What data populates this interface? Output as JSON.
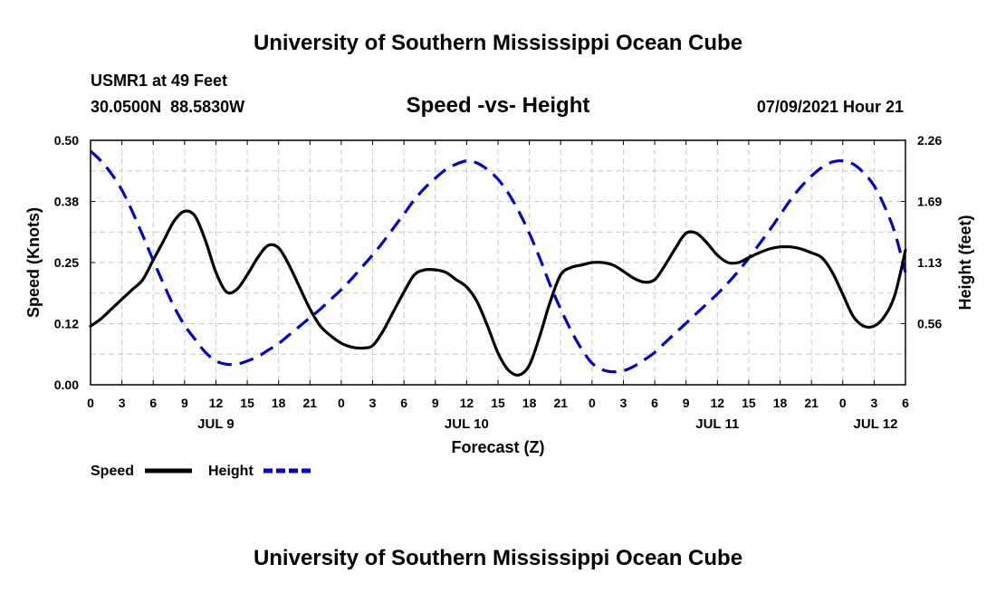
{
  "header": {
    "title_top": "University of Southern Mississippi Ocean Cube",
    "station": "USMR1 at 49 Feet",
    "coords": "30.0500N  88.5830W",
    "datetime": "07/09/2021 Hour 21",
    "title_bottom": "University of Southern Mississippi Ocean Cube"
  },
  "chart_data": {
    "type": "line",
    "title": "Speed -vs- Height",
    "xlabel": "Forecast (Z)",
    "ylabel_left": "Speed (Knots)",
    "ylabel_right": "Height (feet)",
    "x_range_hours": [
      0,
      78
    ],
    "ylim_left": [
      0,
      0.5
    ],
    "ylim_right": [
      0,
      2.26
    ],
    "left_ticks": [
      {
        "value": 0.0,
        "label": "0.00"
      },
      {
        "value": 0.125,
        "label": "0.12"
      },
      {
        "value": 0.25,
        "label": "0.25"
      },
      {
        "value": 0.375,
        "label": "0.38"
      },
      {
        "value": 0.5,
        "label": "0.50"
      }
    ],
    "right_ticks": [
      {
        "value": 0.565,
        "label": "0.56"
      },
      {
        "value": 1.13,
        "label": "1.13"
      },
      {
        "value": 1.695,
        "label": "1.69"
      },
      {
        "value": 2.26,
        "label": "2.26"
      }
    ],
    "x_tick_labels": [
      "0",
      "3",
      "6",
      "9",
      "12",
      "15",
      "18",
      "21",
      "0",
      "3",
      "6",
      "9",
      "12",
      "15",
      "18",
      "21",
      "0",
      "3",
      "6",
      "9",
      "12",
      "15",
      "18",
      "21",
      "0",
      "3",
      "6"
    ],
    "day_labels": [
      {
        "hour": 12,
        "label": "JUL 9"
      },
      {
        "hour": 36,
        "label": "JUL 10"
      },
      {
        "hour": 60,
        "label": "JUL 11"
      },
      {
        "hour": 78,
        "label": "JUL 12"
      }
    ],
    "grid": true,
    "legend": [
      "Speed",
      "Height"
    ],
    "series": [
      {
        "name": "Speed",
        "axis": "left",
        "color": "#000000",
        "dash": "solid",
        "points": [
          [
            0,
            0.12
          ],
          [
            1,
            0.135
          ],
          [
            2,
            0.155
          ],
          [
            3,
            0.175
          ],
          [
            4,
            0.195
          ],
          [
            5,
            0.215
          ],
          [
            6,
            0.255
          ],
          [
            7,
            0.295
          ],
          [
            8,
            0.335
          ],
          [
            9,
            0.355
          ],
          [
            10,
            0.345
          ],
          [
            11,
            0.295
          ],
          [
            12,
            0.23
          ],
          [
            13,
            0.19
          ],
          [
            14,
            0.195
          ],
          [
            15,
            0.225
          ],
          [
            16,
            0.26
          ],
          [
            17,
            0.285
          ],
          [
            18,
            0.28
          ],
          [
            19,
            0.245
          ],
          [
            20,
            0.2
          ],
          [
            21,
            0.155
          ],
          [
            22,
            0.12
          ],
          [
            23,
            0.1
          ],
          [
            24,
            0.085
          ],
          [
            25,
            0.077
          ],
          [
            26,
            0.075
          ],
          [
            27,
            0.08
          ],
          [
            28,
            0.11
          ],
          [
            29,
            0.15
          ],
          [
            30,
            0.19
          ],
          [
            31,
            0.225
          ],
          [
            32,
            0.235
          ],
          [
            33,
            0.235
          ],
          [
            34,
            0.23
          ],
          [
            35,
            0.215
          ],
          [
            36,
            0.2
          ],
          [
            37,
            0.17
          ],
          [
            38,
            0.12
          ],
          [
            39,
            0.065
          ],
          [
            40,
            0.03
          ],
          [
            41,
            0.02
          ],
          [
            42,
            0.04
          ],
          [
            43,
            0.1
          ],
          [
            44,
            0.17
          ],
          [
            45,
            0.225
          ],
          [
            46,
            0.24
          ],
          [
            47,
            0.245
          ],
          [
            48,
            0.25
          ],
          [
            49,
            0.25
          ],
          [
            50,
            0.245
          ],
          [
            51,
            0.232
          ],
          [
            52,
            0.218
          ],
          [
            53,
            0.21
          ],
          [
            54,
            0.215
          ],
          [
            55,
            0.245
          ],
          [
            56,
            0.28
          ],
          [
            57,
            0.31
          ],
          [
            58,
            0.31
          ],
          [
            59,
            0.29
          ],
          [
            60,
            0.265
          ],
          [
            61,
            0.25
          ],
          [
            62,
            0.25
          ],
          [
            63,
            0.26
          ],
          [
            64,
            0.27
          ],
          [
            65,
            0.278
          ],
          [
            66,
            0.282
          ],
          [
            67,
            0.282
          ],
          [
            68,
            0.278
          ],
          [
            69,
            0.27
          ],
          [
            70,
            0.26
          ],
          [
            71,
            0.23
          ],
          [
            72,
            0.185
          ],
          [
            73,
            0.14
          ],
          [
            74,
            0.12
          ],
          [
            75,
            0.12
          ],
          [
            76,
            0.14
          ],
          [
            77,
            0.185
          ],
          [
            78,
            0.275
          ]
        ]
      },
      {
        "name": "Height",
        "axis": "right",
        "color": "#0000cc",
        "dash": "dashed",
        "points": [
          [
            0,
            2.16
          ],
          [
            1,
            2.07
          ],
          [
            2,
            1.95
          ],
          [
            3,
            1.8
          ],
          [
            4,
            1.6
          ],
          [
            5,
            1.38
          ],
          [
            6,
            1.15
          ],
          [
            7,
            0.93
          ],
          [
            8,
            0.72
          ],
          [
            9,
            0.55
          ],
          [
            10,
            0.42
          ],
          [
            11,
            0.3
          ],
          [
            12,
            0.22
          ],
          [
            13,
            0.19
          ],
          [
            14,
            0.19
          ],
          [
            15,
            0.22
          ],
          [
            16,
            0.26
          ],
          [
            17,
            0.32
          ],
          [
            18,
            0.38
          ],
          [
            19,
            0.46
          ],
          [
            20,
            0.54
          ],
          [
            21,
            0.62
          ],
          [
            22,
            0.7
          ],
          [
            23,
            0.79
          ],
          [
            24,
            0.88
          ],
          [
            25,
            0.98
          ],
          [
            26,
            1.09
          ],
          [
            27,
            1.2
          ],
          [
            28,
            1.32
          ],
          [
            29,
            1.45
          ],
          [
            30,
            1.58
          ],
          [
            31,
            1.71
          ],
          [
            32,
            1.82
          ],
          [
            33,
            1.91
          ],
          [
            34,
            1.99
          ],
          [
            35,
            2.04
          ],
          [
            36,
            2.07
          ],
          [
            37,
            2.05
          ],
          [
            38,
            1.99
          ],
          [
            39,
            1.9
          ],
          [
            40,
            1.77
          ],
          [
            41,
            1.6
          ],
          [
            42,
            1.4
          ],
          [
            43,
            1.17
          ],
          [
            44,
            0.92
          ],
          [
            45,
            0.7
          ],
          [
            46,
            0.5
          ],
          [
            47,
            0.33
          ],
          [
            48,
            0.2
          ],
          [
            49,
            0.14
          ],
          [
            50,
            0.12
          ],
          [
            51,
            0.13
          ],
          [
            52,
            0.17
          ],
          [
            53,
            0.23
          ],
          [
            54,
            0.3
          ],
          [
            55,
            0.39
          ],
          [
            56,
            0.48
          ],
          [
            57,
            0.57
          ],
          [
            58,
            0.66
          ],
          [
            59,
            0.75
          ],
          [
            60,
            0.84
          ],
          [
            61,
            0.94
          ],
          [
            62,
            1.05
          ],
          [
            63,
            1.17
          ],
          [
            64,
            1.3
          ],
          [
            65,
            1.43
          ],
          [
            66,
            1.57
          ],
          [
            67,
            1.71
          ],
          [
            68,
            1.83
          ],
          [
            69,
            1.93
          ],
          [
            70,
            2.01
          ],
          [
            71,
            2.06
          ],
          [
            72,
            2.07
          ],
          [
            73,
            2.04
          ],
          [
            74,
            1.96
          ],
          [
            75,
            1.84
          ],
          [
            76,
            1.65
          ],
          [
            77,
            1.4
          ],
          [
            78,
            1.04
          ]
        ]
      }
    ]
  }
}
